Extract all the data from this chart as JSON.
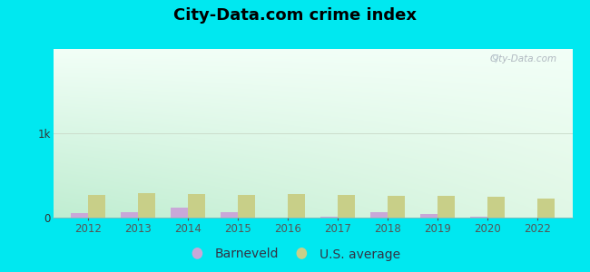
{
  "title": "City-Data.com crime index",
  "years": [
    2012,
    2013,
    2014,
    2015,
    2016,
    2017,
    2018,
    2019,
    2020,
    2022
  ],
  "barneveld": [
    50,
    60,
    115,
    65,
    5,
    12,
    60,
    40,
    8,
    0
  ],
  "us_average": [
    270,
    290,
    275,
    270,
    275,
    270,
    255,
    255,
    245,
    230
  ],
  "barneveld_color": "#c9a8d8",
  "us_average_color": "#c8cf88",
  "bar_width": 0.35,
  "ylim": [
    0,
    2000
  ],
  "yticks": [
    0,
    1000
  ],
  "ytick_labels": [
    "0",
    "1k"
  ],
  "bg_color_topleft": "#b2f0e8",
  "bg_color_topright": "#f5fffc",
  "bg_color_bottom": "#dff0d8",
  "outer_bg": "#00e8f0",
  "watermark": "City-Data.com",
  "title_fontsize": 13,
  "legend_fontsize": 10
}
